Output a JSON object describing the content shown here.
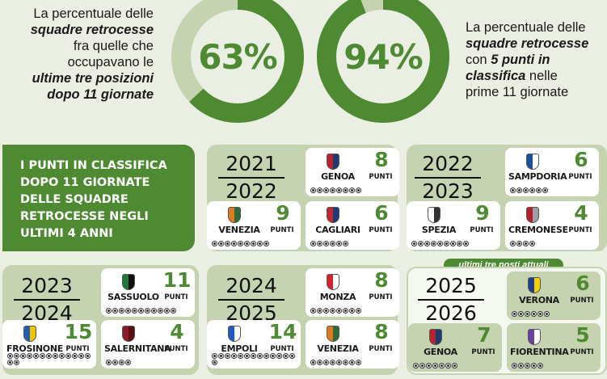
{
  "stat1": {
    "percent": "63%",
    "fraction": 0.63,
    "lines": [
      {
        "text": "La percentuale delle",
        "bold": false
      },
      {
        "text": "squadre retrocesse",
        "bold": true
      },
      {
        "text": "fra quelle che",
        "bold": false
      },
      {
        "text": "occupavano le",
        "bold": false
      },
      {
        "text": "ultime tre posizioni",
        "bold": true
      },
      {
        "text": "dopo 11 giornate",
        "bold": true
      }
    ]
  },
  "stat2": {
    "percent": "94%",
    "fraction": 0.94,
    "lines": [
      {
        "text": "La percentuale delle",
        "bold": false
      },
      {
        "text": "squadre retrocesse",
        "bold": true
      },
      {
        "text": "con 5 punti in",
        "mixed": [
          "con ",
          "5 punti in"
        ]
      },
      {
        "text": "classifica nelle",
        "mixed": [
          "classifica",
          " nelle"
        ]
      },
      {
        "text": "prime 11 giornate",
        "bold": false
      }
    ]
  },
  "title_lines": [
    "I PUNTI IN CLASSIFICA",
    "DOPO 11 GIORNATE",
    "DELLE SQUADRE",
    "RETROCESSE NEGLI",
    "ULTIMI 4 ANNI"
  ],
  "current_tag": "ultimi tre posti attuali",
  "points_label": "PUNTI",
  "colors": {
    "accent": "#4e8a32",
    "ring_bg": "#c5d3b0",
    "panel": "#c5d3b0"
  },
  "seasons": [
    {
      "y1": "2021",
      "y2": "2022",
      "teams": [
        {
          "name": "GENOA",
          "points": "8",
          "crest": [
            "#b8232f",
            "#1f3a6e"
          ]
        },
        {
          "name": "VENEZIA",
          "points": "9",
          "crest": [
            "#e07a1f",
            "#2d6b3a"
          ]
        },
        {
          "name": "CAGLIARI",
          "points": "6",
          "crest": [
            "#c1272d",
            "#1e3a78"
          ]
        }
      ]
    },
    {
      "y1": "2022",
      "y2": "2023",
      "teams": [
        {
          "name": "SAMPDORIA",
          "points": "6",
          "crest": [
            "#1b4fa0",
            "#ffffff"
          ]
        },
        {
          "name": "SPEZIA",
          "points": "9",
          "crest": [
            "#ffffff",
            "#333333"
          ]
        },
        {
          "name": "CREMONESE",
          "points": "4",
          "crest": [
            "#b51f2b",
            "#9aa0a6"
          ]
        }
      ]
    },
    {
      "y1": "2023",
      "y2": "2024",
      "teams": [
        {
          "name": "SASSUOLO",
          "points": "11",
          "crest": [
            "#1c7a3a",
            "#111111"
          ]
        },
        {
          "name": "FROSINONE",
          "points": "15",
          "crest": [
            "#1d5fb5",
            "#f2c500"
          ]
        },
        {
          "name": "SALERNITANA",
          "points": "4",
          "crest": [
            "#8a1c2a",
            "#5a0f18"
          ]
        }
      ]
    },
    {
      "y1": "2024",
      "y2": "2025",
      "teams": [
        {
          "name": "MONZA",
          "points": "8",
          "crest": [
            "#d4212e",
            "#ffffff"
          ]
        },
        {
          "name": "EMPOLI",
          "points": "14",
          "crest": [
            "#1f5cc0",
            "#ffffff"
          ]
        },
        {
          "name": "VENEZIA",
          "points": "8",
          "crest": [
            "#e07a1f",
            "#2d6b3a"
          ]
        }
      ]
    },
    {
      "y1": "2025",
      "y2": "2026",
      "teams": [
        {
          "name": "VERONA",
          "points": "6",
          "crest": [
            "#1e3f8f",
            "#f5d000"
          ]
        },
        {
          "name": "GENOA",
          "points": "7",
          "crest": [
            "#b8232f",
            "#1f3a6e"
          ]
        },
        {
          "name": "FIORENTINA",
          "points": "5",
          "crest": [
            "#6b3fa0",
            "#ffffff"
          ]
        }
      ]
    }
  ]
}
